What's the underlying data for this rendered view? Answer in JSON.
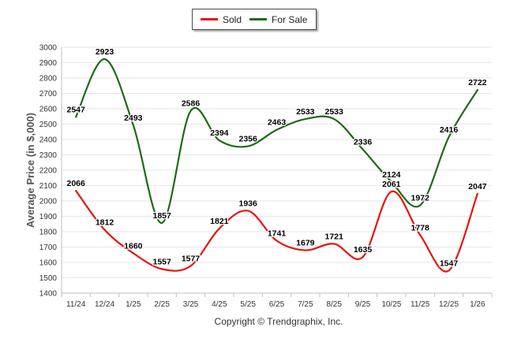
{
  "chart_data": {
    "type": "line",
    "title": "",
    "xlabel": "",
    "ylabel": "Average Price (in $,000)",
    "categories": [
      "11/24",
      "12/24",
      "1/25",
      "2/25",
      "3/25",
      "4/25",
      "5/25",
      "6/25",
      "7/25",
      "8/25",
      "9/25",
      "10/25",
      "11/25",
      "12/25",
      "1/26"
    ],
    "ylim": [
      1400,
      3000
    ],
    "yticks": [
      1400,
      1500,
      1600,
      1700,
      1800,
      1900,
      2000,
      2100,
      2200,
      2300,
      2400,
      2500,
      2600,
      2700,
      2800,
      2900,
      3000
    ],
    "grid": true,
    "legend_position": "top-center",
    "series": [
      {
        "name": "Sold",
        "color": "#e8120f",
        "values": [
          2066,
          1812,
          1660,
          1557,
          1577,
          1821,
          1936,
          1741,
          1679,
          1721,
          1635,
          2061,
          1778,
          1547,
          2047
        ]
      },
      {
        "name": "For Sale",
        "color": "#1c6b12",
        "values": [
          2547,
          2923,
          2493,
          1857,
          2586,
          2394,
          2356,
          2463,
          2533,
          2533,
          2336,
          2124,
          1972,
          2416,
          2722
        ]
      }
    ]
  },
  "legend": {
    "sold_label": "Sold",
    "for_sale_label": "For Sale"
  },
  "footer": {
    "copyright": "Copyright © Trendgraphix, Inc."
  }
}
